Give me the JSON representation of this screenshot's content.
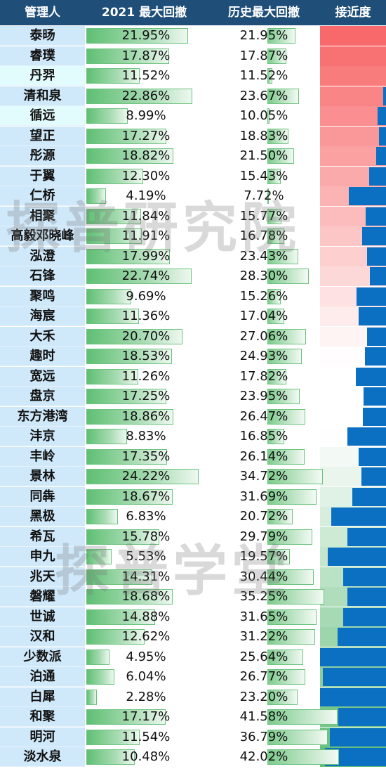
{
  "header": {
    "manager": "管理人",
    "dd2021": "2021 最大回撤",
    "ddhist": "历史最大回撤",
    "prox": "接近度"
  },
  "watermarks": [
    "探普研究院",
    "探普学堂"
  ],
  "colors": {
    "header_bg": "#1f4e79",
    "bar_green": "#5fbf73",
    "prox_red": "#f8696b",
    "prox_blue": "#0b6fc2",
    "prox_green": "#63be7b"
  },
  "chart_data": {
    "type": "table",
    "columns": [
      "管理人",
      "2021 最大回撤",
      "历史最大回撤",
      "接近度"
    ],
    "managers": [
      "泰旸",
      "睿璞",
      "丹羿",
      "清和泉",
      "循远",
      "望正",
      "彤源",
      "于翼",
      "仁桥",
      "相聚",
      "高毅邓晓峰",
      "泓澄",
      "石锋",
      "聚鸣",
      "海宸",
      "大禾",
      "趣时",
      "宽远",
      "盘京",
      "东方港湾",
      "沣京",
      "丰岭",
      "景林",
      "同犇",
      "黑极",
      "希瓦",
      "申九",
      "兆天",
      "磐耀",
      "世诚",
      "汉和",
      "少数派",
      "泊通",
      "白犀",
      "和聚",
      "明河",
      "淡水泉"
    ],
    "dd2021": [
      21.95,
      17.87,
      11.52,
      22.86,
      8.99,
      17.27,
      18.82,
      12.3,
      4.19,
      11.84,
      11.91,
      17.99,
      22.74,
      9.69,
      11.36,
      20.7,
      18.53,
      11.26,
      17.25,
      18.86,
      8.83,
      17.35,
      24.22,
      18.67,
      6.83,
      15.78,
      5.53,
      14.31,
      18.68,
      14.88,
      12.62,
      4.95,
      6.04,
      2.28,
      17.17,
      11.54,
      10.48
    ],
    "ddhist": [
      21.95,
      17.87,
      11.52,
      23.67,
      10.05,
      18.83,
      21.5,
      15.43,
      7.72,
      15.77,
      16.78,
      23.43,
      28.3,
      15.26,
      17.04,
      27.06,
      24.93,
      17.82,
      23.95,
      26.47,
      16.85,
      26.14,
      34.72,
      31.69,
      20.72,
      29.79,
      19.57,
      30.44,
      35.25,
      31.65,
      31.22,
      25.64,
      26.77,
      23.2,
      41.58,
      36.79,
      42.02
    ],
    "dd2021_labels": [
      "21.95%",
      "17.87%",
      "11.52%",
      "22.86%",
      "8.99%",
      "17.27%",
      "18.82%",
      "12.30%",
      "4.19%",
      "11.84%",
      "11.91%",
      "17.99%",
      "22.74%",
      "9.69%",
      "11.36%",
      "20.70%",
      "18.53%",
      "11.26%",
      "17.25%",
      "18.86%",
      "8.83%",
      "17.35%",
      "24.22%",
      "18.67%",
      "6.83%",
      "15.78%",
      "5.53%",
      "14.31%",
      "18.68%",
      "14.88%",
      "12.62%",
      "4.95%",
      "6.04%",
      "2.28%",
      "17.17%",
      "11.54%",
      "10.48%"
    ],
    "ddhist_labels": [
      "21.95%",
      "17.87%",
      "11.52%",
      "23.67%",
      "10.05%",
      "18.83%",
      "21.50%",
      "15.43%",
      "7.72%",
      "15.77%",
      "16.78%",
      "23.43%",
      "28.30%",
      "15.26%",
      "17.04%",
      "27.06%",
      "24.93%",
      "17.82%",
      "23.95%",
      "26.47%",
      "16.85%",
      "26.14%",
      "34.72%",
      "31.69%",
      "20.72%",
      "29.79%",
      "19.57%",
      "30.44%",
      "35.25%",
      "31.65%",
      "31.22%",
      "25.64%",
      "26.77%",
      "23.20%",
      "41.58%",
      "36.79%",
      "42.02%"
    ]
  }
}
